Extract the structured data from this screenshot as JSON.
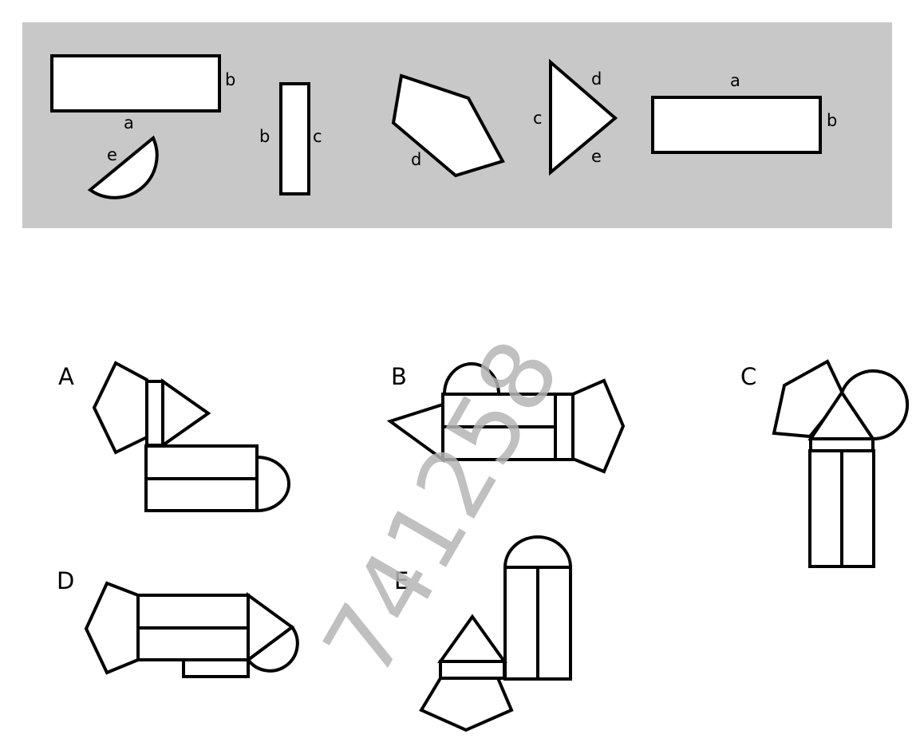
{
  "colors": {
    "panel_background": "#c8c8c8",
    "stroke": "#000000",
    "shape_fill": "#ffffff",
    "watermark": "#b5b5b5"
  },
  "pieces": {
    "rect_wide_top": {
      "side_long": "a",
      "side_short": "b"
    },
    "semicircle": {
      "side": "e"
    },
    "rect_narrow": {
      "side_left": "b",
      "side_right": "c"
    },
    "pentagon": {
      "side": "d"
    },
    "triangle": {
      "side_vertical": "c",
      "side_upper": "d",
      "side_lower": "e"
    },
    "rect_wide_right": {
      "side_long": "a",
      "side_short": "b"
    }
  },
  "options": {
    "A": "A",
    "B": "B",
    "C": "C",
    "D": "D",
    "E": "E"
  },
  "watermark": "741258"
}
